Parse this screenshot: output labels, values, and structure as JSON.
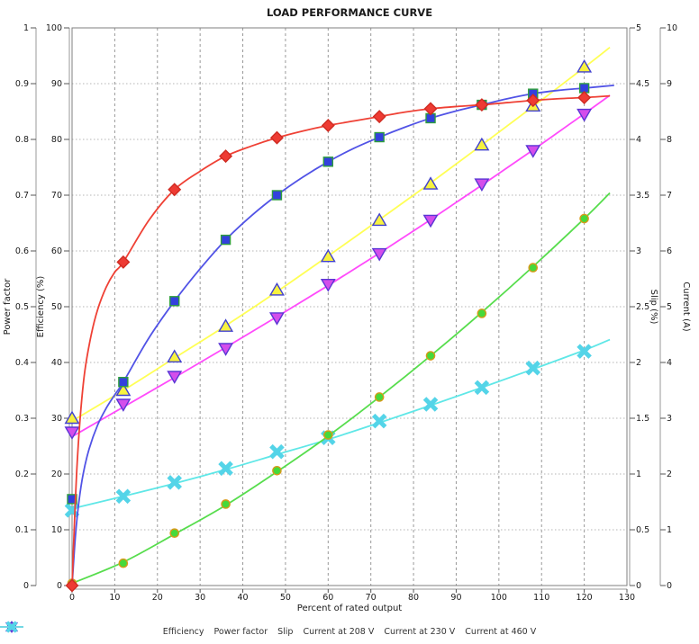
{
  "chart_data": {
    "type": "line",
    "title": "LOAD PERFORMANCE CURVE",
    "xlabel": "Percent of rated output",
    "x_range": [
      0,
      130
    ],
    "x_ticks": [
      0,
      10,
      20,
      30,
      40,
      50,
      60,
      70,
      80,
      90,
      100,
      110,
      120,
      130
    ],
    "grid": "on",
    "legend_position": "bottom",
    "axes": {
      "power_factor": {
        "label": "Power factor",
        "side": "left-outer",
        "range": [
          0,
          1
        ],
        "ticks": [
          0,
          0.1,
          0.2,
          0.3,
          0.4,
          0.5,
          0.6,
          0.7,
          0.8,
          0.9,
          1
        ]
      },
      "efficiency": {
        "label": "Efficiency (%)",
        "side": "left-inner",
        "range": [
          0,
          100
        ],
        "ticks": [
          0,
          10,
          20,
          30,
          40,
          50,
          60,
          70,
          80,
          90,
          100
        ]
      },
      "slip": {
        "label": "Slip (%)",
        "side": "right-inner",
        "range": [
          0,
          5
        ],
        "ticks": [
          0,
          0.5,
          1,
          1.5,
          2,
          2.5,
          3,
          3.5,
          4,
          4.5,
          5
        ]
      },
      "current": {
        "label": "Current (A)",
        "side": "right-outer",
        "range": [
          0,
          10
        ],
        "ticks": [
          0,
          1,
          2,
          3,
          4,
          5,
          6,
          7,
          8,
          9,
          10
        ]
      }
    },
    "x": [
      0,
      12,
      24,
      36,
      48,
      60,
      72,
      84,
      96,
      108,
      120
    ],
    "series": [
      {
        "name": "Efficiency",
        "axis": "efficiency",
        "marker": "diamond",
        "z": 6,
        "line_color": "#ef4135",
        "fill": "#ee3b33",
        "edge": "#cf2b22",
        "values": [
          0,
          58,
          71,
          77,
          80.3,
          82.5,
          84.1,
          85.5,
          86.2,
          87,
          87.5
        ],
        "curve": [
          [
            0,
            0
          ],
          [
            0.6,
            12
          ],
          [
            1.2,
            22
          ],
          [
            2,
            31
          ],
          [
            3,
            38.5
          ],
          [
            4.5,
            45
          ],
          [
            6,
            49.5
          ],
          [
            8,
            53.5
          ],
          [
            10,
            56.2
          ],
          [
            12,
            58
          ],
          [
            18,
            65.5
          ],
          [
            24,
            71
          ],
          [
            30,
            74.3
          ],
          [
            36,
            77
          ],
          [
            42,
            78.8
          ],
          [
            48,
            80.3
          ],
          [
            54,
            81.5
          ],
          [
            60,
            82.5
          ],
          [
            66,
            83.3
          ],
          [
            72,
            84.1
          ],
          [
            78,
            84.9
          ],
          [
            84,
            85.5
          ],
          [
            90,
            85.9
          ],
          [
            96,
            86.2
          ],
          [
            102,
            86.6
          ],
          [
            108,
            87
          ],
          [
            114,
            87.3
          ],
          [
            120,
            87.5
          ],
          [
            126,
            87.8
          ]
        ]
      },
      {
        "name": "Power factor",
        "axis": "power_factor",
        "marker": "square",
        "z": 5,
        "line_color": "#5153e6",
        "fill": "#3340dd",
        "edge": "#2e9e3e",
        "values": [
          0.155,
          0.365,
          0.51,
          0.62,
          0.7,
          0.76,
          0.804,
          0.838,
          0.862,
          0.882,
          0.892
        ],
        "curve": [
          [
            0,
            0
          ],
          [
            0.8,
            0.09
          ],
          [
            1.6,
            0.15
          ],
          [
            2.6,
            0.2
          ],
          [
            4,
            0.245
          ],
          [
            6,
            0.288
          ],
          [
            8,
            0.318
          ],
          [
            10,
            0.342
          ],
          [
            12,
            0.365
          ],
          [
            18,
            0.444
          ],
          [
            24,
            0.51
          ],
          [
            30,
            0.568
          ],
          [
            36,
            0.62
          ],
          [
            42,
            0.663
          ],
          [
            48,
            0.7
          ],
          [
            54,
            0.732
          ],
          [
            60,
            0.76
          ],
          [
            66,
            0.784
          ],
          [
            72,
            0.804
          ],
          [
            78,
            0.822
          ],
          [
            84,
            0.838
          ],
          [
            90,
            0.851
          ],
          [
            96,
            0.862
          ],
          [
            102,
            0.873
          ],
          [
            108,
            0.882
          ],
          [
            114,
            0.888
          ],
          [
            120,
            0.892
          ],
          [
            127,
            0.897
          ]
        ]
      },
      {
        "name": "Slip",
        "axis": "slip",
        "marker": "circle",
        "z": 4,
        "line_color": "#57dd4d",
        "fill": "#46d93a",
        "edge": "#d89a18",
        "values": [
          0.02,
          0.2,
          0.47,
          0.73,
          1.03,
          1.35,
          1.69,
          2.06,
          2.44,
          2.85,
          3.29
        ],
        "curve": [
          [
            0,
            0.02
          ],
          [
            12,
            0.21
          ],
          [
            24,
            0.46
          ],
          [
            36,
            0.72
          ],
          [
            48,
            1.02
          ],
          [
            60,
            1.34
          ],
          [
            72,
            1.69
          ],
          [
            84,
            2.06
          ],
          [
            96,
            2.45
          ],
          [
            108,
            2.86
          ],
          [
            120,
            3.29
          ],
          [
            126,
            3.52
          ]
        ]
      },
      {
        "name": "Current at 208 V",
        "axis": "current",
        "marker": "triangle_up",
        "z": 3,
        "line_color": "#ffff55",
        "fill": "#f7f23f",
        "edge": "#4040cf",
        "values": [
          3.0,
          3.5,
          4.1,
          4.65,
          5.3,
          5.9,
          6.55,
          7.2,
          7.9,
          8.6,
          9.3
        ],
        "curve": [
          [
            0,
            2.95
          ],
          [
            12,
            3.5
          ],
          [
            24,
            4.08
          ],
          [
            36,
            4.66
          ],
          [
            48,
            5.27
          ],
          [
            60,
            5.91
          ],
          [
            72,
            6.56
          ],
          [
            84,
            7.22
          ],
          [
            96,
            7.9
          ],
          [
            108,
            8.59
          ],
          [
            120,
            9.29
          ],
          [
            126,
            9.65
          ]
        ]
      },
      {
        "name": "Current at 230 V",
        "axis": "current",
        "marker": "triangle_down",
        "z": 2,
        "line_color": "#ff4bfb",
        "fill": "#d44deb",
        "edge": "#5a36d5",
        "values": [
          2.75,
          3.25,
          3.75,
          4.25,
          4.8,
          5.4,
          5.95,
          6.55,
          7.2,
          7.8,
          8.45
        ],
        "curve": [
          [
            0,
            2.67
          ],
          [
            12,
            3.2
          ],
          [
            24,
            3.73
          ],
          [
            36,
            4.27
          ],
          [
            48,
            4.82
          ],
          [
            60,
            5.38
          ],
          [
            72,
            5.96
          ],
          [
            84,
            6.56
          ],
          [
            96,
            7.18
          ],
          [
            108,
            7.81
          ],
          [
            120,
            8.46
          ],
          [
            126,
            8.79
          ]
        ]
      },
      {
        "name": "Current at 460 V",
        "axis": "current",
        "marker": "x",
        "z": 1,
        "line_color": "#5fe7e7",
        "fill": "#54d4e8",
        "edge": "#43c4da",
        "values": [
          1.35,
          1.6,
          1.85,
          2.1,
          2.4,
          2.65,
          2.95,
          3.25,
          3.55,
          3.9,
          4.2
        ],
        "curve": [
          [
            0,
            1.38
          ],
          [
            12,
            1.6
          ],
          [
            24,
            1.83
          ],
          [
            36,
            2.08
          ],
          [
            48,
            2.35
          ],
          [
            60,
            2.62
          ],
          [
            72,
            2.92
          ],
          [
            84,
            3.23
          ],
          [
            96,
            3.55
          ],
          [
            108,
            3.88
          ],
          [
            120,
            4.22
          ],
          [
            126,
            4.41
          ]
        ]
      }
    ]
  }
}
